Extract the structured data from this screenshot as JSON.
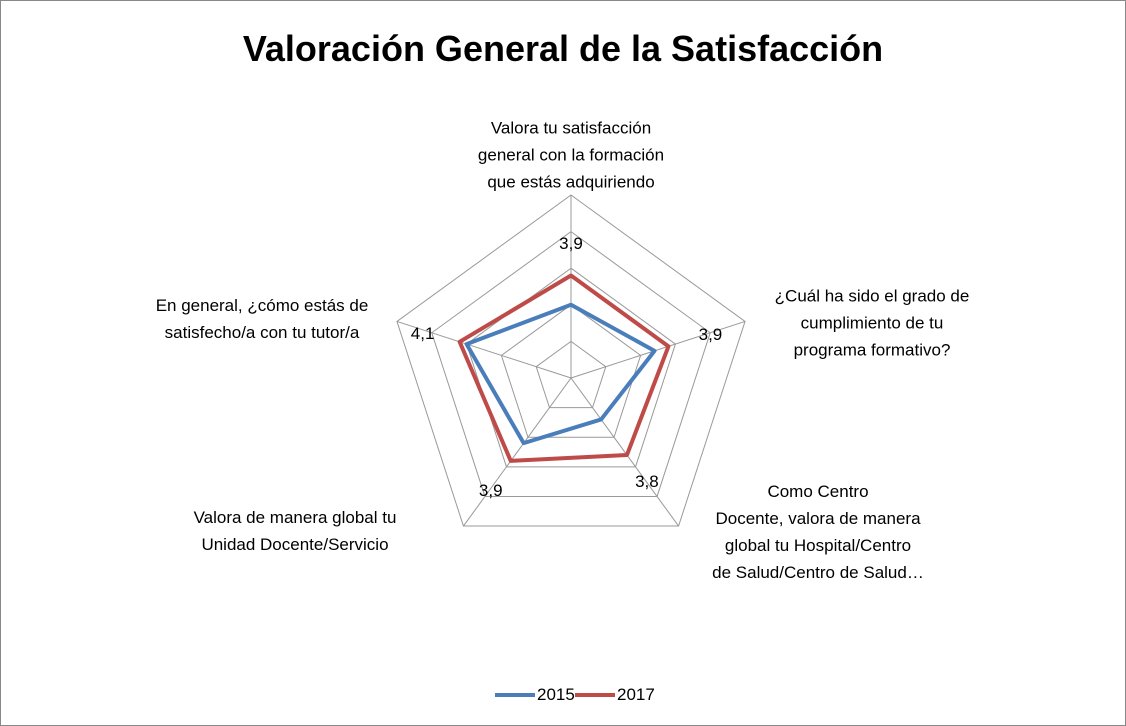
{
  "chart_data": {
    "type": "radar",
    "title": "Valoración General de la Satisfacción",
    "categories": [
      "Valora tu satisfacción\ngeneral con la formación\nque estás adquiriendo",
      "¿Cuál ha sido el grado de\ncumplimiento de tu\nprograma formativo?",
      "Como Centro\nDocente, valora de manera\nglobal tu Hospital/Centro\nde Salud/Centro de Salud…",
      "Valora de manera global tu\nUnidad Docente/Servicio",
      "En general, ¿cómo estás de\nsatisfecho/a con tu tutor/a"
    ],
    "series": [
      {
        "name": "2015",
        "color": "#4a7ebb",
        "values": [
          3.5,
          3.7,
          3.2,
          3.6,
          4.0
        ]
      },
      {
        "name": "2017",
        "color": "#be4b48",
        "values": [
          3.9,
          3.9,
          3.8,
          3.9,
          4.1
        ],
        "value_labels": [
          "3,9",
          "3,9",
          "3,8",
          "3,9",
          "4,1"
        ]
      }
    ],
    "ylim": [
      2.5,
      5
    ],
    "yticks": [
      2.5,
      3,
      3.5,
      4,
      4.5,
      5
    ],
    "grid": true,
    "legend": "bottom"
  }
}
